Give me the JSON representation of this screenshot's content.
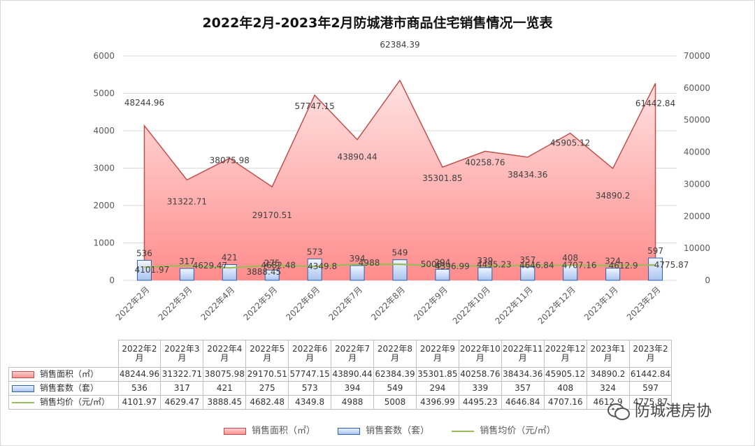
{
  "title": "2022年2月-2023年2月防城港市商品住宅销售情况一览表",
  "chart_data": {
    "type": "bar",
    "title": "2022年2月-2023年2月防城港市商品住宅销售情况一览表",
    "categories": [
      "2022年2月",
      "2022年3月",
      "2022年4月",
      "2022年5月",
      "2022年6月",
      "2022年7月",
      "2022年8月",
      "2022年9月",
      "2022年10月",
      "2022年11月",
      "2022年12月",
      "2023年1月",
      "2023年2月"
    ],
    "table_headers": [
      "2022年2月",
      "2022年3月",
      "2022年4月",
      "2022年5月",
      "2022年6月",
      "2022年7月",
      "2022年8月",
      "2022年9月",
      "2022年10月",
      "2022年11月",
      "2022年12月",
      "2023年1月",
      "2023年2月"
    ],
    "series": [
      {
        "name": "销售面积（㎡）",
        "type": "area",
        "axis": "right",
        "values": [
          48244.96,
          31322.71,
          38075.98,
          29170.51,
          57747.15,
          43890.44,
          62384.39,
          35301.85,
          40258.76,
          38434.36,
          45905.12,
          34890.2,
          61442.84
        ],
        "labels": [
          "48244.96",
          "31322.71",
          "38075.98",
          "29170.51",
          "57747.15",
          "43890.44",
          "62384.39",
          "35301.85",
          "40258.76",
          "38434.36",
          "45905.12",
          "34890.2",
          "61442.84"
        ],
        "color": "#c0504d"
      },
      {
        "name": "销售套数（套）",
        "type": "bar",
        "axis": "left",
        "values": [
          536,
          317,
          421,
          275,
          573,
          394,
          549,
          294,
          339,
          357,
          408,
          324,
          597
        ],
        "labels": [
          "536",
          "317",
          "421",
          "275",
          "573",
          "394",
          "549",
          "294",
          "339",
          "357",
          "408",
          "324",
          "597"
        ],
        "color": "#2e5fa8"
      },
      {
        "name": "销售均价（元/㎡）",
        "type": "line",
        "axis": "right",
        "values": [
          4101.97,
          4629.47,
          3888.45,
          4682.48,
          4349.8,
          4988,
          5008,
          4396.99,
          4495.23,
          4646.84,
          4707.16,
          4612.9,
          4775.87
        ],
        "labels": [
          "4101.97",
          "4629.47",
          "3888.45",
          "4682.48",
          "4349.8",
          "4988",
          "5008",
          "4396.99",
          "4495.23",
          "4646.84",
          "4707.16",
          "4612.9",
          "4775.87"
        ],
        "table_labels": [
          "4101.97",
          "4629.47",
          "3888.45",
          "4682.48",
          "4349.8",
          "4988",
          "5008",
          "4396.99",
          "4495.23",
          "4646.84",
          "4707.16",
          "4612.9",
          "4775.87"
        ],
        "color": "#9bbb59"
      }
    ],
    "yleft": {
      "min": 0,
      "max": 6000,
      "ticks": [
        "0",
        "1000",
        "2000",
        "3000",
        "4000",
        "5000",
        "6000"
      ]
    },
    "yright": {
      "min": 0,
      "max": 70000,
      "ticks": [
        "0",
        "10000",
        "20000",
        "30000",
        "40000",
        "50000",
        "60000",
        "70000"
      ]
    },
    "grid": true,
    "legend": "bottom",
    "data_table": true
  },
  "watermark": "防城港房协"
}
